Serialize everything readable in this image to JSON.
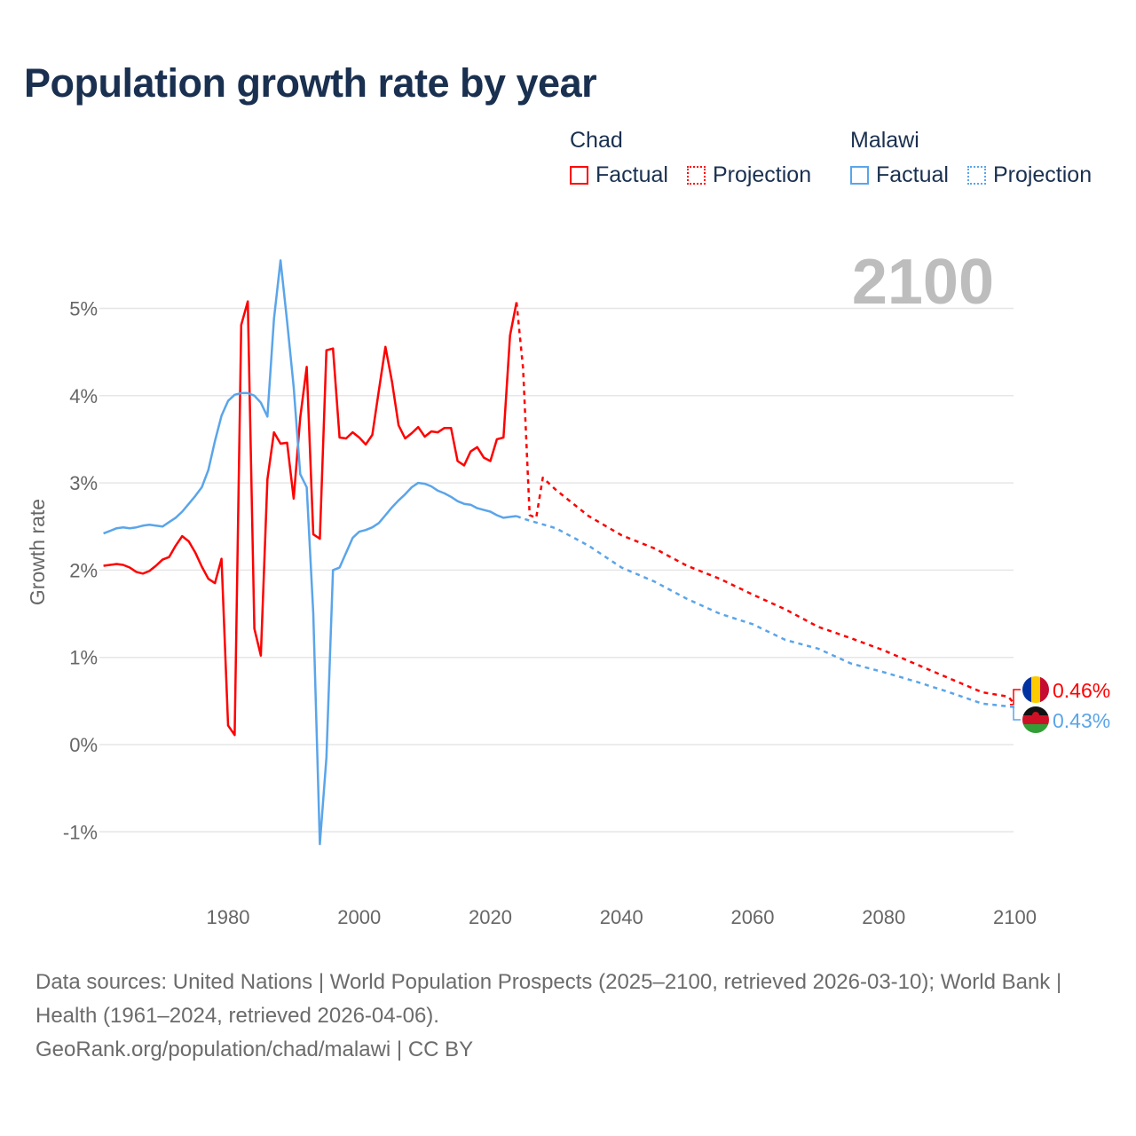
{
  "title": "Population growth rate by year",
  "legend": {
    "groups": [
      {
        "name": "Chad",
        "color": "#ff0000",
        "factual": "Factual",
        "projection": "Projection"
      },
      {
        "name": "Malawi",
        "color": "#5aa5ea",
        "factual": "Factual",
        "projection": "Projection"
      }
    ]
  },
  "year_display": "2100",
  "footer": {
    "sources": "Data sources: United Nations | World Population Prospects (2025–2100, retrieved 2026-03-10); World Bank | Health (1961–2024, retrieved 2026-04-06).",
    "credit": "GeoRank.org/population/chad/malawi | CC BY"
  },
  "chart_data": {
    "type": "line",
    "title": "Population growth rate by year",
    "xlabel": "",
    "ylabel": "Growth rate",
    "xlim": [
      1961,
      2100
    ],
    "ylim": [
      -1.5,
      5.6
    ],
    "x_ticks": [
      1980,
      2000,
      2020,
      2040,
      2060,
      2080,
      2100
    ],
    "y_ticks": [
      -1,
      0,
      1,
      2,
      3,
      4,
      5
    ],
    "y_tick_labels": [
      "-1%",
      "0%",
      "1%",
      "2%",
      "3%",
      "4%",
      "5%"
    ],
    "grid": true,
    "legend_position": "top-right",
    "end_labels": [
      {
        "series": "Chad",
        "label": "0.46%",
        "flag": "chad-flag"
      },
      {
        "series": "Malawi",
        "label": "0.43%",
        "flag": "malawi-flag"
      }
    ],
    "series": [
      {
        "name": "Chad",
        "kind": "Factual",
        "color": "#ff0000",
        "dashed": false,
        "x_start": 1961,
        "values": [
          2.05,
          2.06,
          2.07,
          2.06,
          2.03,
          1.98,
          1.96,
          1.99,
          2.05,
          2.12,
          2.15,
          2.28,
          2.39,
          2.33,
          2.2,
          2.04,
          1.9,
          1.85,
          2.13,
          0.22,
          0.11,
          4.81,
          5.08,
          1.33,
          1.02,
          3.04,
          3.58,
          3.45,
          3.46,
          2.82,
          3.75,
          4.33,
          2.41,
          2.36,
          4.52,
          4.54,
          3.52,
          3.51,
          3.58,
          3.52,
          3.44,
          3.55,
          4.06,
          4.56,
          4.16,
          3.66,
          3.51,
          3.57,
          3.64,
          3.53,
          3.59,
          3.58,
          3.63,
          3.63,
          3.25,
          3.2,
          3.36,
          3.41,
          3.29,
          3.25,
          3.5,
          3.52,
          4.69,
          5.07
        ]
      },
      {
        "name": "Chad",
        "kind": "Projection",
        "color": "#ff0000",
        "dashed": true,
        "points": [
          [
            2024,
            5.07
          ],
          [
            2025,
            4.31
          ],
          [
            2026,
            2.63
          ],
          [
            2027,
            2.6
          ],
          [
            2028,
            3.06
          ],
          [
            2029,
            2.99
          ],
          [
            2030,
            2.92
          ],
          [
            2035,
            2.62
          ],
          [
            2040,
            2.4
          ],
          [
            2045,
            2.25
          ],
          [
            2050,
            2.05
          ],
          [
            2055,
            1.9
          ],
          [
            2060,
            1.72
          ],
          [
            2065,
            1.55
          ],
          [
            2070,
            1.35
          ],
          [
            2075,
            1.22
          ],
          [
            2080,
            1.08
          ],
          [
            2085,
            0.92
          ],
          [
            2090,
            0.76
          ],
          [
            2095,
            0.6
          ],
          [
            2099,
            0.55
          ],
          [
            2100,
            0.46
          ]
        ]
      },
      {
        "name": "Malawi",
        "kind": "Factual",
        "color": "#5aa5ea",
        "dashed": false,
        "x_start": 1961,
        "values": [
          2.42,
          2.45,
          2.48,
          2.49,
          2.48,
          2.49,
          2.51,
          2.52,
          2.51,
          2.5,
          2.55,
          2.6,
          2.67,
          2.76,
          2.85,
          2.95,
          3.15,
          3.48,
          3.77,
          3.94,
          4.01,
          4.03,
          4.03,
          4.0,
          3.92,
          3.76,
          4.88,
          5.55,
          4.85,
          4.1,
          3.1,
          2.95,
          1.5,
          -1.14,
          -0.15,
          2.0,
          2.03,
          2.2,
          2.37,
          2.44,
          2.46,
          2.49,
          2.54,
          2.63,
          2.72,
          2.8,
          2.87,
          2.95,
          3.0,
          2.99,
          2.96,
          2.91,
          2.88,
          2.84,
          2.79,
          2.76,
          2.75,
          2.71,
          2.69,
          2.67,
          2.63,
          2.6,
          2.61,
          2.62
        ]
      },
      {
        "name": "Malawi",
        "kind": "Projection",
        "color": "#5aa5ea",
        "dashed": true,
        "points": [
          [
            2024,
            2.62
          ],
          [
            2025,
            2.59
          ],
          [
            2030,
            2.48
          ],
          [
            2035,
            2.28
          ],
          [
            2040,
            2.03
          ],
          [
            2045,
            1.87
          ],
          [
            2050,
            1.67
          ],
          [
            2055,
            1.5
          ],
          [
            2060,
            1.38
          ],
          [
            2065,
            1.2
          ],
          [
            2070,
            1.1
          ],
          [
            2075,
            0.93
          ],
          [
            2080,
            0.83
          ],
          [
            2085,
            0.72
          ],
          [
            2090,
            0.6
          ],
          [
            2095,
            0.47
          ],
          [
            2100,
            0.43
          ]
        ]
      }
    ]
  }
}
